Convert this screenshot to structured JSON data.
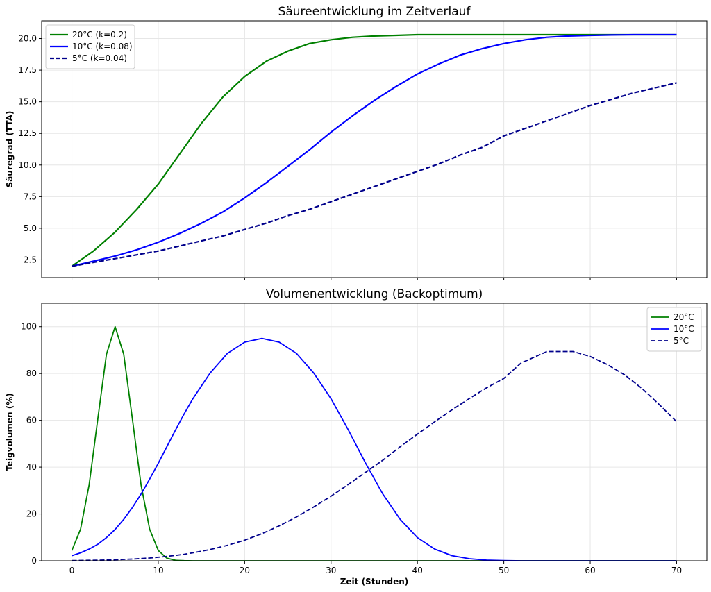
{
  "chart_data": [
    {
      "type": "line",
      "title": "Säureentwicklung im Zeitverlauf",
      "xlabel": "",
      "ylabel": "Säuregrad (TTA)",
      "xlim": [
        -3.5,
        73.5
      ],
      "ylim": [
        1.1,
        21.4
      ],
      "xticks": [
        0,
        10,
        20,
        30,
        40,
        50,
        60,
        70
      ],
      "show_xtick_labels": false,
      "yticks": [
        2.5,
        5.0,
        7.5,
        10.0,
        12.5,
        15.0,
        17.5,
        20.0
      ],
      "ytick_labels": [
        "2.5",
        "5.0",
        "7.5",
        "10.0",
        "12.5",
        "15.0",
        "17.5",
        "20.0"
      ],
      "grid": true,
      "legend_position": "top-left",
      "x": [
        0,
        2.5,
        5,
        7.5,
        10,
        12.5,
        15,
        17.5,
        20,
        22.5,
        25,
        27.5,
        30,
        32.5,
        35,
        37.5,
        40,
        42.5,
        45,
        47.5,
        50,
        52.5,
        55,
        57.5,
        60,
        62.5,
        65,
        67.5,
        70
      ],
      "series": [
        {
          "name": "20°C (k=0.2)",
          "color": "#008000",
          "dash": "solid",
          "width": 2.2,
          "values": [
            2.0,
            3.2,
            4.7,
            6.5,
            8.5,
            10.9,
            13.3,
            15.4,
            17.0,
            18.2,
            19.0,
            19.6,
            19.9,
            20.1,
            20.2,
            20.25,
            20.3,
            20.3,
            20.3,
            20.3,
            20.3,
            20.3,
            20.3,
            20.3,
            20.3,
            20.3,
            20.3,
            20.3,
            20.3
          ]
        },
        {
          "name": "10°C (k=0.08)",
          "color": "#0000ff",
          "dash": "solid",
          "width": 2.2,
          "values": [
            2.0,
            2.4,
            2.8,
            3.3,
            3.9,
            4.6,
            5.4,
            6.3,
            7.4,
            8.6,
            9.9,
            11.2,
            12.6,
            13.9,
            15.1,
            16.2,
            17.2,
            18.0,
            18.7,
            19.2,
            19.6,
            19.9,
            20.1,
            20.2,
            20.25,
            20.28,
            20.3,
            20.3,
            20.3
          ]
        },
        {
          "name": "5°C (k=0.04)",
          "color": "#00008b",
          "dash": "dashed",
          "width": 2.2,
          "values": [
            2.0,
            2.3,
            2.6,
            2.9,
            3.2,
            3.6,
            4.0,
            4.4,
            4.9,
            5.4,
            6.0,
            6.5,
            7.1,
            7.7,
            8.3,
            8.9,
            9.5,
            10.1,
            10.8,
            11.4,
            12.3,
            12.9,
            13.5,
            14.1,
            14.7,
            15.2,
            15.7,
            16.1,
            16.5
          ]
        }
      ]
    },
    {
      "type": "line",
      "title": "Volumenentwicklung (Backoptimum)",
      "xlabel": "Zeit (Stunden)",
      "ylabel": "Teigvolumen (%)",
      "xlim": [
        -3.5,
        73.5
      ],
      "ylim": [
        0,
        110
      ],
      "xticks": [
        0,
        10,
        20,
        30,
        40,
        50,
        60,
        70
      ],
      "show_xtick_labels": true,
      "xtick_labels": [
        "0",
        "10",
        "20",
        "30",
        "40",
        "50",
        "60",
        "70"
      ],
      "yticks": [
        0,
        20,
        40,
        60,
        80,
        100
      ],
      "ytick_labels": [
        "0",
        "20",
        "40",
        "60",
        "80",
        "100"
      ],
      "grid": true,
      "legend_position": "top-right",
      "x": [
        0,
        1,
        2,
        3,
        4,
        5,
        6,
        7,
        8,
        9,
        10,
        11,
        12,
        13,
        14,
        16,
        18,
        20,
        22,
        24,
        26,
        28,
        30,
        32,
        34,
        36,
        38,
        40,
        42,
        44,
        46,
        48,
        50,
        52,
        55,
        58,
        60,
        62,
        64,
        66,
        68,
        70
      ],
      "series": [
        {
          "name": "20°C",
          "color": "#008000",
          "dash": "solid",
          "width": 1.8,
          "values": [
            4.4,
            13.5,
            32.5,
            60.7,
            88.2,
            100,
            88.2,
            60.7,
            32.5,
            13.5,
            4.4,
            1.1,
            0.2,
            0.05,
            0,
            0,
            0,
            0,
            0,
            0,
            0,
            0,
            0,
            0,
            0,
            0,
            0,
            0,
            0,
            0,
            0,
            0,
            0,
            0,
            0,
            0,
            0,
            0,
            0,
            0,
            0,
            0
          ]
        },
        {
          "name": "10°C",
          "color": "#0000ff",
          "dash": "solid",
          "width": 1.8,
          "values": [
            2.2,
            3.4,
            5.0,
            7.1,
            9.9,
            13.4,
            17.7,
            22.7,
            28.5,
            34.9,
            41.7,
            48.8,
            55.9,
            62.8,
            69.2,
            80.2,
            88.6,
            93.4,
            95.0,
            93.4,
            88.6,
            80.2,
            69.2,
            55.9,
            41.7,
            28.5,
            17.7,
            9.9,
            5.0,
            2.2,
            0.9,
            0.3,
            0.1,
            0,
            0,
            0,
            0,
            0,
            0,
            0,
            0,
            0
          ]
        },
        {
          "name": "5°C",
          "color": "#00008b",
          "dash": "dashed",
          "width": 1.8,
          "values": [
            0.1,
            0.15,
            0.2,
            0.25,
            0.35,
            0.45,
            0.6,
            0.75,
            0.95,
            1.2,
            1.5,
            1.9,
            2.3,
            2.8,
            3.4,
            4.8,
            6.6,
            8.8,
            11.6,
            14.9,
            18.7,
            23.0,
            27.6,
            32.6,
            37.8,
            43.0,
            48.7,
            54.1,
            59.4,
            64.5,
            69.3,
            73.9,
            77.9,
            84.5,
            89.4,
            89.4,
            87.3,
            83.8,
            79.4,
            73.6,
            66.7,
            59.4
          ]
        }
      ]
    }
  ]
}
